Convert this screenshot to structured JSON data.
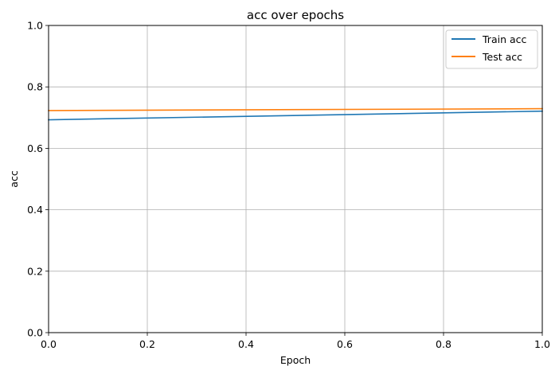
{
  "chart_data": {
    "type": "line",
    "title": "acc over epochs",
    "xlabel": "Epoch",
    "ylabel": "acc",
    "xlim": [
      0.0,
      1.0
    ],
    "ylim": [
      0.0,
      1.0
    ],
    "x_ticks": [
      "0.0",
      "0.2",
      "0.4",
      "0.6",
      "0.8",
      "1.0"
    ],
    "y_ticks": [
      "0.0",
      "0.2",
      "0.4",
      "0.6",
      "0.8",
      "1.0"
    ],
    "grid": true,
    "legend_position": "top-right",
    "series": [
      {
        "name": "Train acc",
        "color": "#1f77b4",
        "x": [
          0,
          1
        ],
        "values": [
          0.693,
          0.721
        ]
      },
      {
        "name": "Test acc",
        "color": "#ff7f0e",
        "x": [
          0,
          1
        ],
        "values": [
          0.723,
          0.729
        ]
      }
    ]
  }
}
